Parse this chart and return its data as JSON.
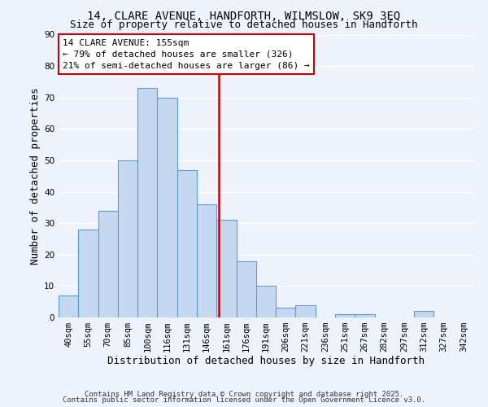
{
  "title": "14, CLARE AVENUE, HANDFORTH, WILMSLOW, SK9 3EQ",
  "subtitle": "Size of property relative to detached houses in Handforth",
  "xlabel": "Distribution of detached houses by size in Handforth",
  "ylabel": "Number of detached properties",
  "bar_labels": [
    "40sqm",
    "55sqm",
    "70sqm",
    "85sqm",
    "100sqm",
    "116sqm",
    "131sqm",
    "146sqm",
    "161sqm",
    "176sqm",
    "191sqm",
    "206sqm",
    "221sqm",
    "236sqm",
    "251sqm",
    "267sqm",
    "282sqm",
    "297sqm",
    "312sqm",
    "327sqm",
    "342sqm"
  ],
  "bar_values": [
    7,
    28,
    34,
    50,
    73,
    70,
    47,
    36,
    31,
    18,
    10,
    3,
    4,
    0,
    1,
    1,
    0,
    0,
    2,
    0,
    0
  ],
  "bar_color": "#c5d8f0",
  "bar_edge_color": "#5b9bd5",
  "vline_color": "#cc0000",
  "annotation_line1": "14 CLARE AVENUE: 155sqm",
  "annotation_line2": "← 79% of detached houses are smaller (326)",
  "annotation_line3": "21% of semi-detached houses are larger (86) →",
  "box_edge_color": "#cc0000",
  "ylim": [
    0,
    90
  ],
  "yticks": [
    0,
    10,
    20,
    30,
    40,
    50,
    60,
    70,
    80,
    90
  ],
  "footer1": "Contains HM Land Registry data © Crown copyright and database right 2025.",
  "footer2": "Contains public sector information licensed under the Open Government Licence v3.0.",
  "background_color": "#eef2fb",
  "grid_color": "#ffffff",
  "title_fontsize": 10,
  "subtitle_fontsize": 9,
  "axis_label_fontsize": 9,
  "tick_fontsize": 7.5,
  "annotation_fontsize": 8,
  "footer_fontsize": 6.5
}
